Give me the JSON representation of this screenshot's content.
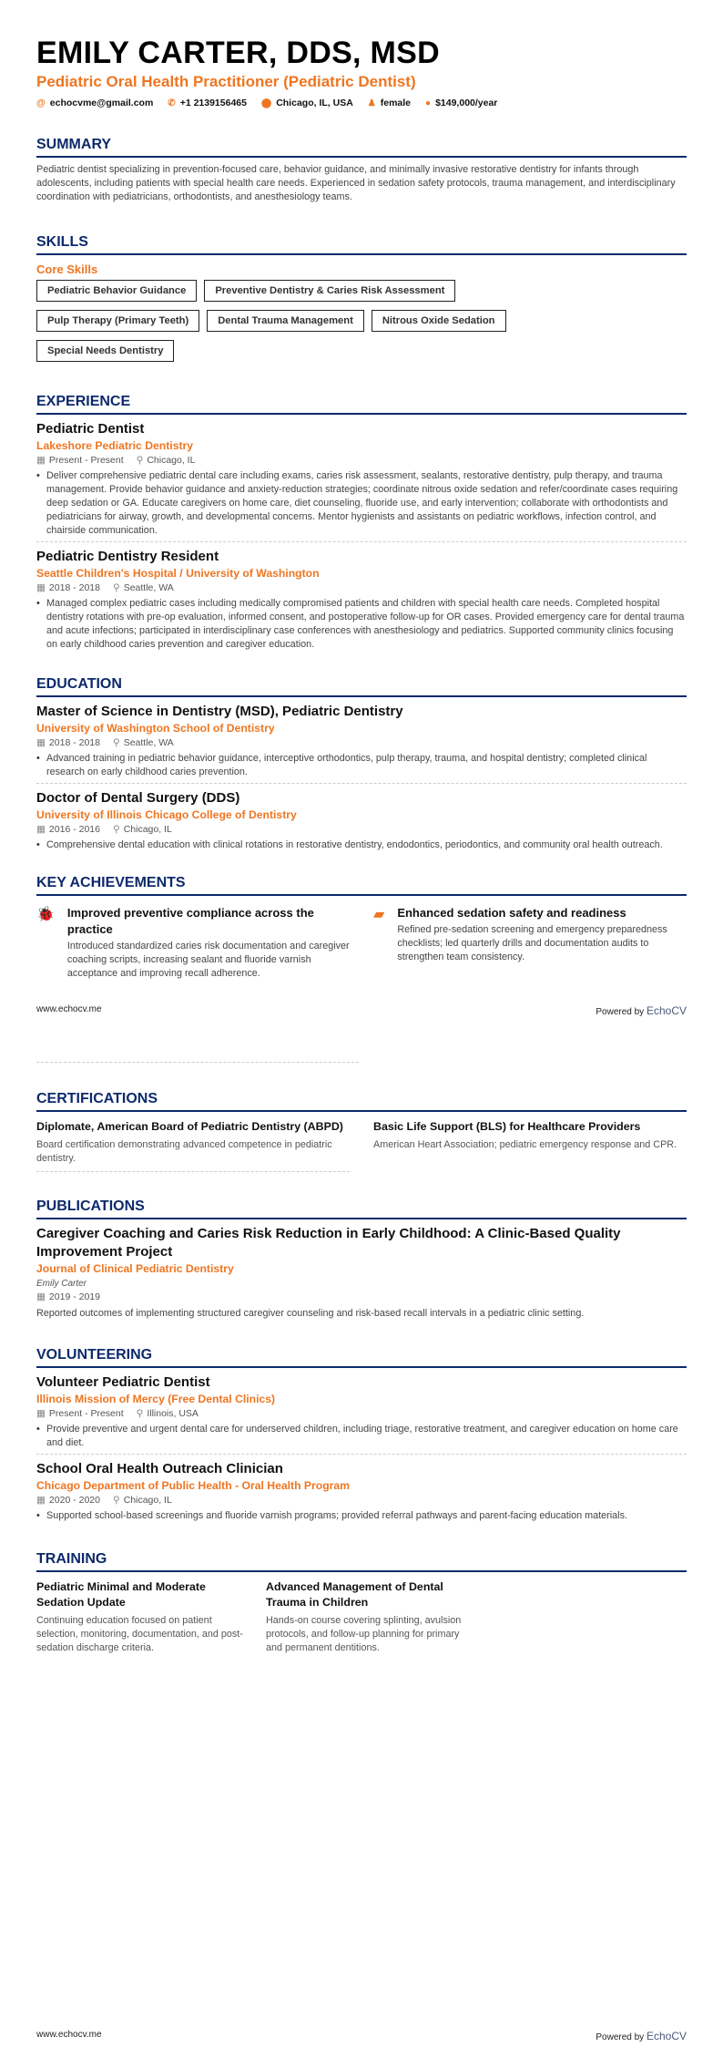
{
  "header": {
    "name": "EMILY CARTER, DDS, MSD",
    "title": "Pediatric Oral Health Practitioner (Pediatric Dentist)",
    "contacts": [
      {
        "icon": "at-icon",
        "text": "echocvme@gmail.com"
      },
      {
        "icon": "phone-icon",
        "text": "+1 2139156465"
      },
      {
        "icon": "location-icon",
        "text": "Chicago, IL, USA"
      },
      {
        "icon": "person-icon",
        "text": "female"
      },
      {
        "icon": "money-icon",
        "text": "$149,000/year"
      }
    ]
  },
  "colors": {
    "accent": "#ee7622",
    "heading": "#0d2a6b"
  },
  "summary": {
    "heading": "SUMMARY",
    "text": "Pediatric dentist specializing in prevention-focused care, behavior guidance, and minimally invasive restorative dentistry for infants through adolescents, including patients with special health care needs. Experienced in sedation safety protocols, trauma management, and interdisciplinary coordination with pediatricians, orthodontists, and anesthesiology teams."
  },
  "skills": {
    "heading": "SKILLS",
    "group": "Core Skills",
    "items": [
      "Pediatric Behavior Guidance",
      "Preventive Dentistry & Caries Risk Assessment",
      "Pulp Therapy (Primary Teeth)",
      "Dental Trauma Management",
      "Nitrous Oxide Sedation",
      "Special Needs Dentistry"
    ]
  },
  "experience": {
    "heading": "EXPERIENCE",
    "items": [
      {
        "title": "Pediatric Dentist",
        "org": "Lakeshore Pediatric Dentistry",
        "dates": "Present - Present",
        "location": "Chicago, IL",
        "bullet": "Deliver comprehensive pediatric dental care including exams, caries risk assessment, sealants, restorative dentistry, pulp therapy, and trauma management. Provide behavior guidance and anxiety-reduction strategies; coordinate nitrous oxide sedation and refer/coordinate cases requiring deep sedation or GA. Educate caregivers on home care, diet counseling, fluoride use, and early intervention; collaborate with orthodontists and pediatricians for airway, growth, and developmental concerns. Mentor hygienists and assistants on pediatric workflows, infection control, and chairside communication."
      },
      {
        "title": "Pediatric Dentistry Resident",
        "org": "Seattle Children's Hospital / University of Washington",
        "dates": "2018 - 2018",
        "location": "Seattle, WA",
        "bullet": "Managed complex pediatric cases including medically compromised patients and children with special health care needs. Completed hospital dentistry rotations with pre-op evaluation, informed consent, and postoperative follow-up for OR cases. Provided emergency care for dental trauma and acute infections; participated in interdisciplinary case conferences with anesthesiology and pediatrics. Supported community clinics focusing on early childhood caries prevention and caregiver education."
      }
    ]
  },
  "education": {
    "heading": "EDUCATION",
    "items": [
      {
        "title": "Master of Science in Dentistry (MSD), Pediatric Dentistry",
        "org": "University of Washington School of Dentistry",
        "dates": "2018 - 2018",
        "location": "Seattle, WA",
        "bullet": "Advanced training in pediatric behavior guidance, interceptive orthodontics, pulp therapy, trauma, and hospital dentistry; completed clinical research on early childhood caries prevention."
      },
      {
        "title": "Doctor of Dental Surgery (DDS)",
        "org": "University of Illinois Chicago College of Dentistry",
        "dates": "2016 - 2016",
        "location": "Chicago, IL",
        "bullet": "Comprehensive dental education with clinical rotations in restorative dentistry, endodontics, periodontics, and community oral health outreach."
      }
    ]
  },
  "achievements": {
    "heading": "KEY ACHIEVEMENTS",
    "items": [
      {
        "icon": "bug-icon",
        "title": "Improved preventive compliance across the practice",
        "text": "Introduced standardized caries risk documentation and caregiver coaching scripts, increasing sealant and fluoride varnish acceptance and improving recall adherence."
      },
      {
        "icon": "comment-icon",
        "title": "Enhanced sedation safety and readiness",
        "text": "Refined pre-sedation screening and emergency preparedness checklists; led quarterly drills and documentation audits to strengthen team consistency."
      }
    ]
  },
  "footer": {
    "site": "www.echocv.me",
    "powered": "Powered by",
    "brand": "EchoCV"
  },
  "certifications": {
    "heading": "CERTIFICATIONS",
    "items": [
      {
        "title": "Diplomate, American Board of Pediatric Dentistry (ABPD)",
        "text": "Board certification demonstrating advanced competence in pediatric dentistry."
      },
      {
        "title": "Basic Life Support (BLS) for Healthcare Providers",
        "text": "American Heart Association; pediatric emergency response and CPR."
      }
    ]
  },
  "publications": {
    "heading": "PUBLICATIONS",
    "items": [
      {
        "title": "Caregiver Coaching and Caries Risk Reduction in Early Childhood: A Clinic-Based Quality Improvement Project",
        "journal": "Journal of Clinical Pediatric Dentistry",
        "author": "Emily Carter",
        "dates": "2019 - 2019",
        "text": "Reported outcomes of implementing structured caregiver counseling and risk-based recall intervals in a pediatric clinic setting."
      }
    ]
  },
  "volunteering": {
    "heading": "VOLUNTEERING",
    "items": [
      {
        "title": "Volunteer Pediatric Dentist",
        "org": "Illinois Mission of Mercy (Free Dental Clinics)",
        "dates": "Present - Present",
        "location": "Illinois, USA",
        "bullet": "Provide preventive and urgent dental care for underserved children, including triage, restorative treatment, and caregiver education on home care and diet."
      },
      {
        "title": "School Oral Health Outreach Clinician",
        "org": "Chicago Department of Public Health - Oral Health Program",
        "dates": "2020 - 2020",
        "location": "Chicago, IL",
        "bullet": "Supported school-based screenings and fluoride varnish programs; provided referral pathways and parent-facing education materials."
      }
    ]
  },
  "training": {
    "heading": "TRAINING",
    "items": [
      {
        "title": "Pediatric Minimal and Moderate Sedation Update",
        "text": "Continuing education focused on patient selection, monitoring, documentation, and post-sedation discharge criteria."
      },
      {
        "title": "Advanced Management of Dental Trauma in Children",
        "text": "Hands-on course covering splinting, avulsion protocols, and follow-up planning for primary and permanent dentitions."
      }
    ]
  }
}
